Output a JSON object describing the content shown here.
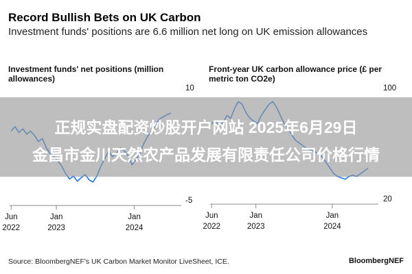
{
  "header": {
    "title": "Record Bullish Bets on UK Carbon",
    "subtitle": "Investment funds' positions are 6.6 million net long on UK emission allowances"
  },
  "banner": {
    "line1": "正规实盘配资炒股开户网站 2025年6月29日",
    "line2": "金昌市金川天然农产品发展有限责任公司价格行情"
  },
  "footer": {
    "source": "Source: BloombergNEF's UK Carbon Market Monitor LiveSheet, ICE.",
    "brand": "BloombergNEF"
  },
  "colors": {
    "line": "#1f77e8",
    "axis": "#888888",
    "banner": "#969696"
  },
  "chart_data": [
    {
      "type": "line",
      "title": "Investment funds' net positions (million allowances)",
      "xlabel": "",
      "ylabel": "",
      "xlim": [
        2022.4,
        2024.55
      ],
      "ylim": [
        -5,
        10
      ],
      "yticks": [
        10,
        -5
      ],
      "xtick_labels": [
        {
          "top": "Jun",
          "bottom": "2022",
          "x": 2022.42
        },
        {
          "top": "Jan",
          "bottom": "2023",
          "x": 2023.0
        },
        {
          "top": "Jan",
          "bottom": "2024",
          "x": 2024.0
        }
      ],
      "series": [
        {
          "x": [
            2022.42,
            2022.47,
            2022.52,
            2022.57,
            2022.62,
            2022.67,
            2022.72,
            2022.77,
            2022.82,
            2022.87,
            2022.92,
            2022.97,
            2023.02,
            2023.07,
            2023.12,
            2023.17,
            2023.22,
            2023.27,
            2023.32,
            2023.37,
            2023.42,
            2023.47,
            2023.52,
            2023.57,
            2023.62,
            2023.67,
            2023.72,
            2023.77,
            2023.82,
            2023.87,
            2023.92,
            2023.97,
            2024.02,
            2024.07,
            2024.12,
            2024.17,
            2024.22,
            2024.27,
            2024.32,
            2024.37,
            2024.42,
            2024.47
          ],
          "y": [
            4.2,
            4.8,
            4.0,
            4.5,
            3.8,
            4.2,
            3.6,
            2.8,
            3.2,
            2.0,
            1.2,
            0.8,
            0.2,
            -0.5,
            -1.5,
            -2.2,
            -1.8,
            -2.5,
            -2.0,
            -1.6,
            -2.3,
            -2.6,
            -1.8,
            -0.5,
            0.5,
            1.5,
            0.8,
            1.2,
            2.0,
            1.6,
            0.9,
            -0.3,
            0.4,
            1.2,
            2.5,
            3.5,
            4.2,
            5.0,
            5.8,
            6.1,
            6.4,
            6.6
          ]
        }
      ]
    },
    {
      "type": "line",
      "title": "Front-year UK carbon allowance price (£ per metric ton CO2e)",
      "xlabel": "",
      "ylabel": "",
      "xlim": [
        2022.4,
        2024.55
      ],
      "ylim": [
        20,
        100
      ],
      "yticks": [
        100,
        20
      ],
      "xtick_labels": [
        {
          "top": "Jun",
          "bottom": "2022",
          "x": 2022.42
        },
        {
          "top": "Jan",
          "bottom": "2023",
          "x": 2023.0
        },
        {
          "top": "Jan",
          "bottom": "2024",
          "x": 2024.0
        }
      ],
      "series": [
        {
          "x": [
            2022.42,
            2022.47,
            2022.52,
            2022.57,
            2022.62,
            2022.67,
            2022.72,
            2022.77,
            2022.82,
            2022.87,
            2022.92,
            2022.97,
            2023.02,
            2023.07,
            2023.12,
            2023.17,
            2023.22,
            2023.27,
            2023.32,
            2023.37,
            2023.42,
            2023.47,
            2023.52,
            2023.57,
            2023.62,
            2023.67,
            2023.72,
            2023.77,
            2023.82,
            2023.87,
            2023.92,
            2023.97,
            2024.02,
            2024.07,
            2024.12,
            2024.17,
            2024.22,
            2024.27,
            2024.32,
            2024.37,
            2024.42,
            2024.47
          ],
          "y": [
            74,
            76,
            72,
            75,
            80,
            78,
            85,
            90,
            88,
            82,
            78,
            76,
            74,
            80,
            84,
            88,
            90,
            86,
            80,
            74,
            70,
            66,
            62,
            60,
            58,
            56,
            55,
            54,
            52,
            50,
            46,
            42,
            38,
            36,
            35,
            34,
            36,
            37,
            36,
            38,
            40,
            42
          ]
        }
      ]
    }
  ]
}
